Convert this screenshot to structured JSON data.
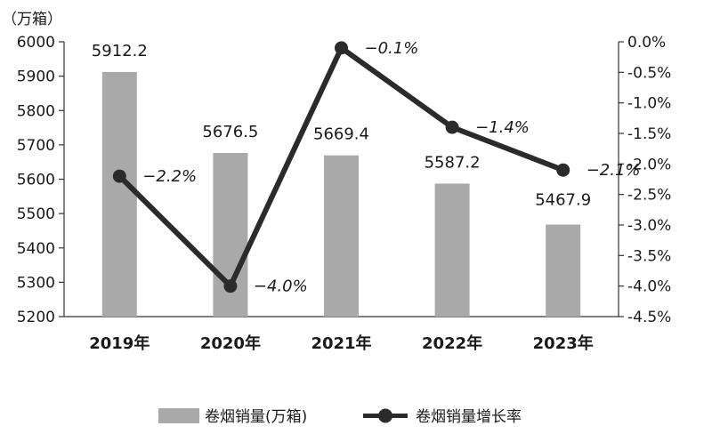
{
  "chart_data": {
    "type": "bar",
    "categories": [
      "2019年",
      "2020年",
      "2021年",
      "2022年",
      "2023年"
    ],
    "y_unit_label": "（万箱）",
    "series": [
      {
        "name": "卷烟销量(万箱)",
        "type": "bar",
        "axis": "left",
        "values": [
          5912.2,
          5676.5,
          5669.4,
          5587.2,
          5467.9
        ],
        "labels": [
          "5912.2",
          "5676.5",
          "5669.4",
          "5587.2",
          "5467.9"
        ],
        "color": "#a9a9a9"
      },
      {
        "name": "卷烟销量增长率",
        "type": "line",
        "axis": "right",
        "values": [
          -2.2,
          -4.0,
          -0.1,
          -1.4,
          -2.1
        ],
        "labels": [
          "−2.2%",
          "−4.0%",
          "−0.1%",
          "−1.4%",
          "−2.1%"
        ],
        "color": "#2b2b2b"
      }
    ],
    "y_left": {
      "lim": [
        5200,
        6000
      ],
      "ticks": [
        "5200",
        "5300",
        "5400",
        "5500",
        "5600",
        "5700",
        "5800",
        "5900",
        "6000"
      ]
    },
    "y_right": {
      "lim": [
        -4.5,
        0.0
      ],
      "ticks": [
        "-4.5%",
        "-4.0%",
        "-3.5%",
        "-3.0%",
        "-2.5%",
        "-2.0%",
        "-1.5%",
        "-1.0%",
        "-0.5%",
        "0.0%"
      ]
    },
    "grid": false,
    "legend": {
      "position": "bottom",
      "items": [
        "卷烟销量(万箱)",
        "卷烟销量增长率"
      ]
    }
  }
}
